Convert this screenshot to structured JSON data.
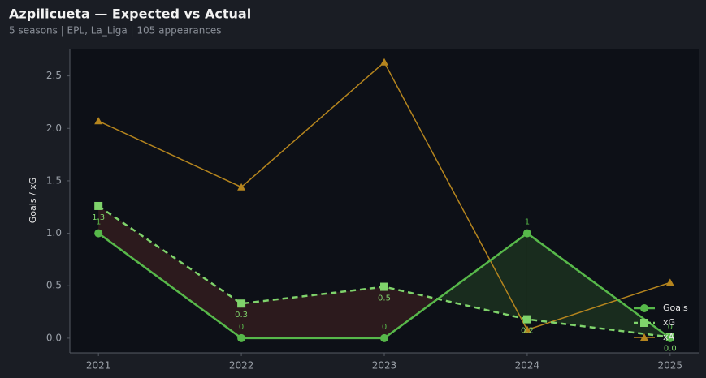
{
  "chart_data": {
    "type": "line",
    "title": "Azpilicueta — Expected vs Actual",
    "subtitle": "5 seasons | EPL, La_Liga | 105 appearances",
    "y_label": "Goals / xG",
    "x": [
      2021,
      2022,
      2023,
      2024,
      2025
    ],
    "xlim": [
      2020.8,
      2025.2
    ],
    "xticks": [
      2021,
      2022,
      2023,
      2024,
      2025
    ],
    "ylim": [
      -0.14,
      2.76
    ],
    "yticks": [
      {
        "value": 0,
        "label": "0.0"
      },
      0.5,
      {
        "value": 1,
        "label": "1.0"
      },
      1.5,
      {
        "value": 2,
        "label": "2.0"
      },
      2.5
    ],
    "legend": "lower right",
    "series": [
      {
        "name": "Goals",
        "color": "#57b84a",
        "values": [
          1,
          0,
          0,
          1,
          0
        ]
      },
      {
        "name": "xG",
        "color": "#7fd36b",
        "values": [
          1.26,
          0.33,
          0.49,
          0.18,
          0.01
        ],
        "value_labels": [
          "1.3",
          "0.3",
          "0.5",
          "0.2",
          "0.0"
        ]
      },
      {
        "name": "xA",
        "color": "#b5851e",
        "values": [
          2.07,
          1.44,
          2.63,
          0.08,
          0.53
        ]
      }
    ]
  }
}
